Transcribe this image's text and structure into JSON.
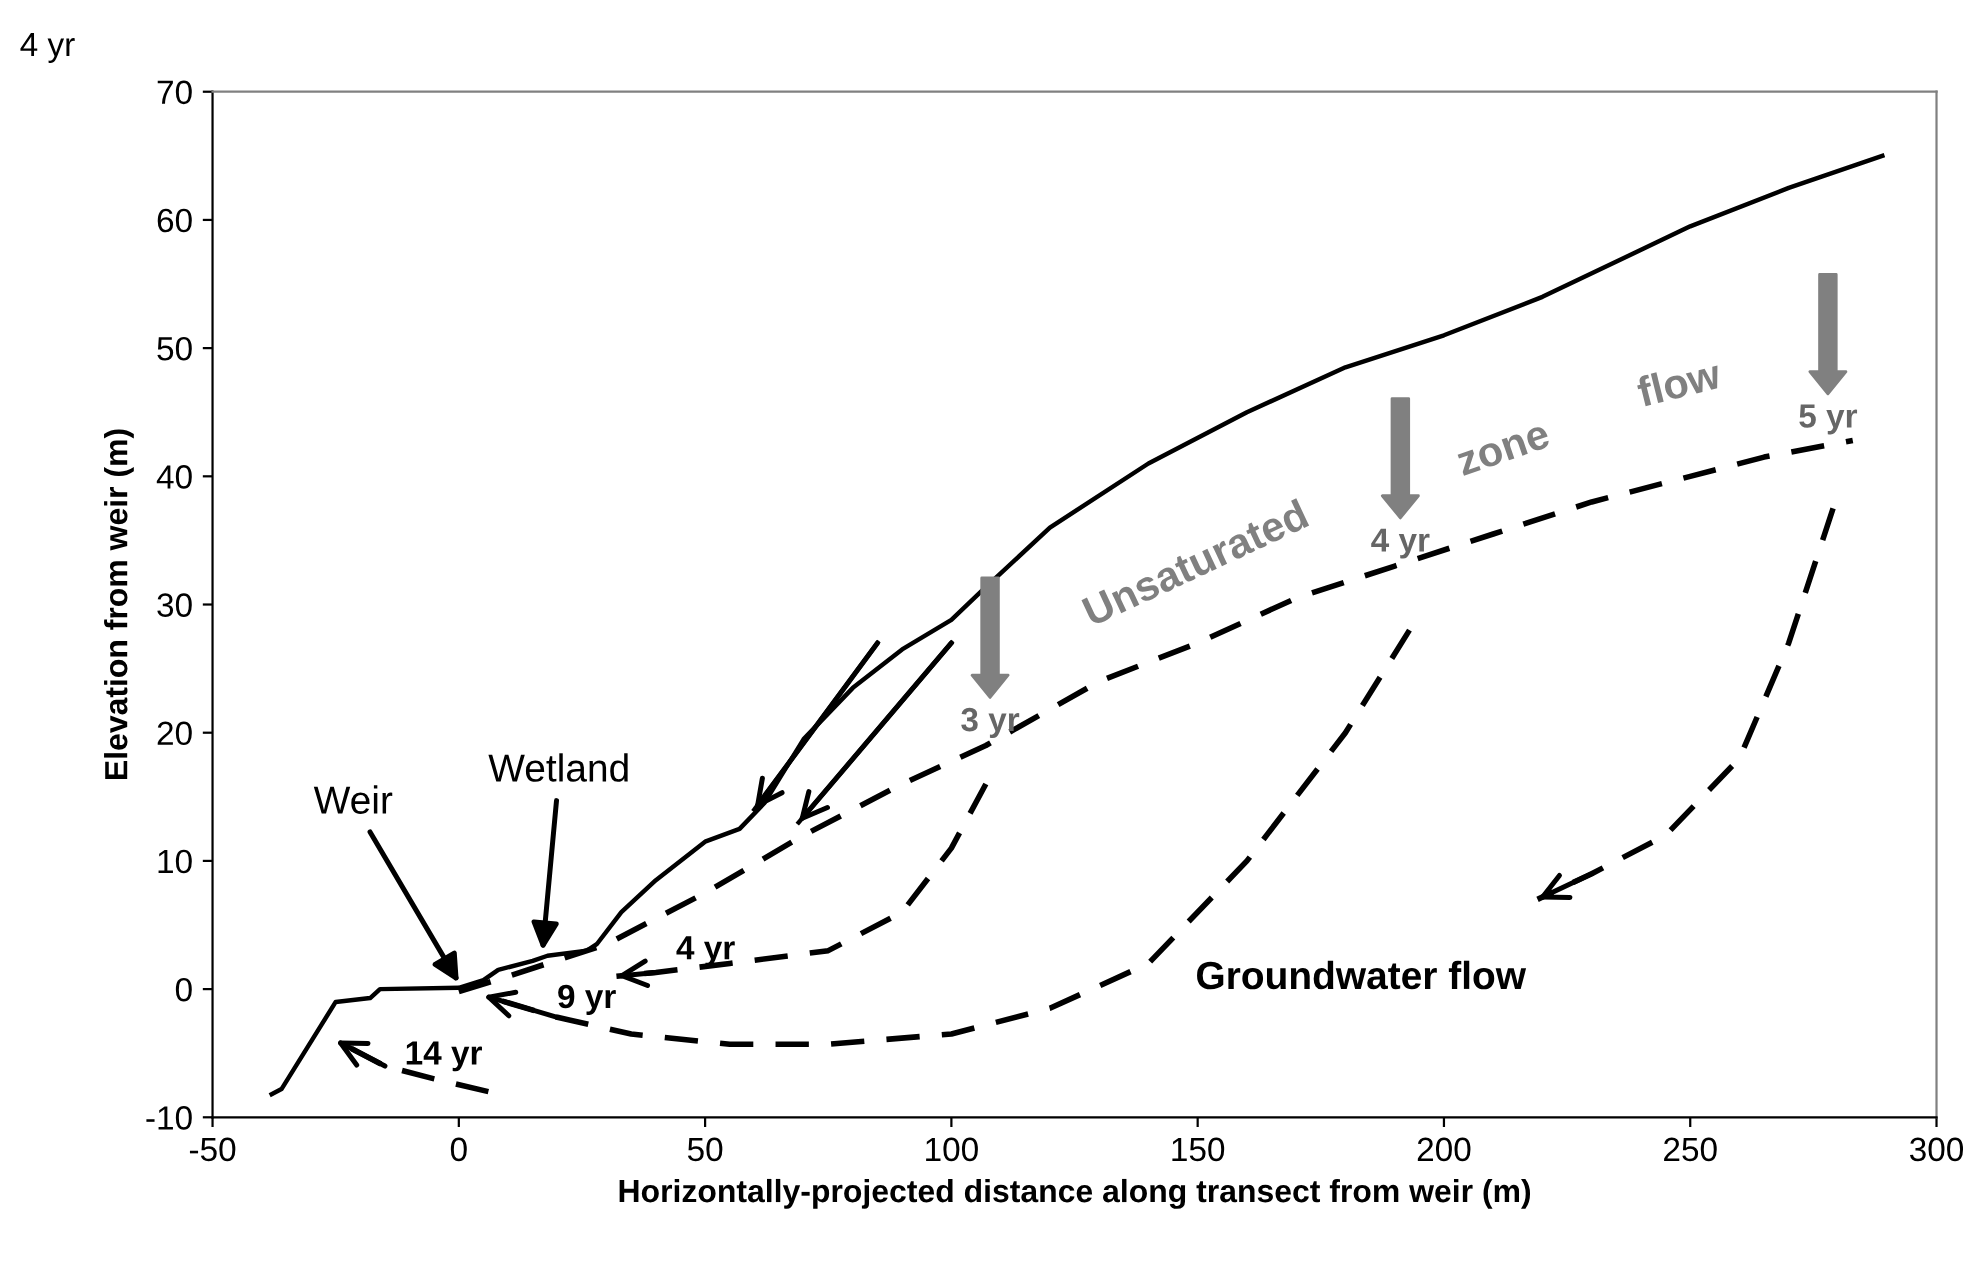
{
  "chart_data": {
    "type": "line",
    "xlabel": "Horizontally-projected distance along transect from weir (m)",
    "ylabel": "Elevation from weir (m)",
    "xlim": [
      -50,
      300
    ],
    "xticks": [
      -50,
      0,
      50,
      100,
      150,
      200,
      250,
      300
    ],
    "ylim": [
      -10,
      70
    ],
    "yticks": [
      -10,
      0,
      10,
      20,
      30,
      40,
      50,
      60,
      70
    ],
    "grid": false,
    "marker": "none",
    "series": [
      {
        "color": "#000000",
        "line_style": "solid",
        "x": [
          -38,
          -36,
          -25,
          -18,
          -16,
          0,
          5,
          8,
          15,
          18,
          26,
          28,
          33,
          40,
          45,
          50,
          57,
          62,
          70,
          80,
          90,
          100,
          106,
          120,
          140,
          160,
          180,
          200,
          220,
          250,
          270,
          289
        ],
        "values": [
          -8.2,
          -7.8,
          -1,
          -0.7,
          0,
          0.1,
          0.7,
          1.5,
          2.2,
          2.6,
          3.0,
          3.5,
          6,
          8.5,
          10,
          11.5,
          12.5,
          14.5,
          19.5,
          23.5,
          26.5,
          28.8,
          31,
          36,
          41,
          45,
          48.5,
          51,
          54,
          59.5,
          62.5,
          65
        ]
      },
      {
        "color": "#000000",
        "line_style": "dashed",
        "x": [
          0,
          10,
          30,
          50,
          70,
          90,
          107,
          130,
          150,
          170,
          190,
          210,
          230,
          250,
          265,
          283
        ],
        "values": [
          -0.2,
          1,
          3.5,
          7.5,
          12,
          16,
          19,
          24,
          27,
          30.5,
          33,
          35.5,
          38,
          40,
          41.5,
          42.8
        ]
      },
      {
        "color": "#000000",
        "line_style": "dashed",
        "x": [
          107,
          100,
          90,
          75,
          55,
          40,
          32
        ],
        "values": [
          16,
          11,
          6,
          3,
          2,
          1.3,
          1
        ]
      },
      {
        "color": "#000000",
        "line_style": "dashed",
        "x": [
          193,
          180,
          160,
          140,
          120,
          100,
          75,
          55,
          35,
          20,
          5
        ],
        "values": [
          28,
          20,
          10,
          2,
          -1.5,
          -3.5,
          -4.3,
          -4.3,
          -3.5,
          -2.2,
          -0.5
        ]
      },
      {
        "color": "#000000",
        "line_style": "dashed",
        "x": [
          279,
          270,
          260,
          245,
          230,
          219
        ],
        "values": [
          37.5,
          27,
          18,
          12,
          9,
          7
        ]
      },
      {
        "color": "#000000",
        "line_style": "dashed",
        "x": [
          6,
          -5,
          -15,
          -25
        ],
        "values": [
          -8,
          -7,
          -6,
          -4
        ]
      },
      {
        "color": "#000000",
        "line_style": "solid",
        "x": [
          85,
          60
        ],
        "values": [
          27,
          14
        ]
      },
      {
        "color": "#000000",
        "line_style": "solid",
        "x": [
          100,
          69
        ],
        "values": [
          27,
          13
        ]
      }
    ],
    "annotations": [
      "4 yr",
      {
        "text": "Weir",
        "x": 0,
        "y": 0.5
      },
      {
        "text": "Wetland",
        "x": 17,
        "y": 3
      },
      "4 yr",
      "9 yr",
      "14 yr",
      "3 yr",
      "4 yr",
      "5 yr",
      "Unsaturated",
      "zone",
      "flow",
      "Groundwater flow"
    ]
  }
}
